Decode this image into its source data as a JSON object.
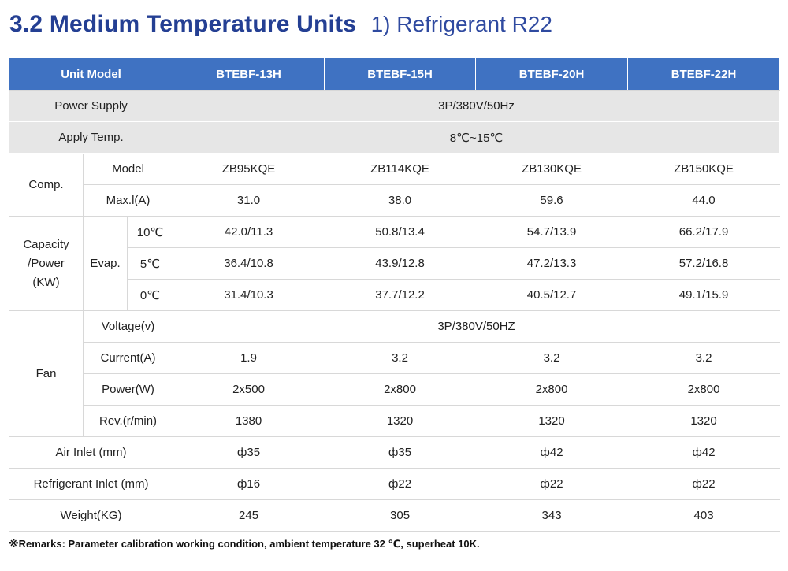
{
  "title": {
    "main": "3.2 Medium Temperature Units",
    "sub": "1) Refrigerant R22"
  },
  "table": {
    "header": {
      "unit_model": "Unit Model",
      "models": [
        "BTEBF-13H",
        "BTEBF-15H",
        "BTEBF-20H",
        "BTEBF-22H"
      ]
    },
    "power_supply": {
      "label": "Power Supply",
      "value": "3P/380V/50Hz"
    },
    "apply_temp": {
      "label": "Apply Temp.",
      "value": "8℃~15℃"
    },
    "comp": {
      "label": "Comp.",
      "model": {
        "label": "Model",
        "values": [
          "ZB95KQE",
          "ZB114KQE",
          "ZB130KQE",
          "ZB150KQE"
        ]
      },
      "max_current": {
        "label": "Max.l(A)",
        "values": [
          "31.0",
          "38.0",
          "59.6",
          "44.0"
        ]
      }
    },
    "capacity": {
      "label_lines": [
        "Capacity",
        "/Power",
        "(KW)"
      ],
      "evap_label": "Evap.",
      "rows": [
        {
          "temp": "10℃",
          "values": [
            "42.0/11.3",
            "50.8/13.4",
            "54.7/13.9",
            "66.2/17.9"
          ]
        },
        {
          "temp": "5℃",
          "values": [
            "36.4/10.8",
            "43.9/12.8",
            "47.2/13.3",
            "57.2/16.8"
          ]
        },
        {
          "temp": "0℃",
          "values": [
            "31.4/10.3",
            "37.7/12.2",
            "40.5/12.7",
            "49.1/15.9"
          ]
        }
      ]
    },
    "fan": {
      "label": "Fan",
      "voltage": {
        "label": "Voltage(v)",
        "value": "3P/380V/50HZ"
      },
      "current": {
        "label": "Current(A)",
        "values": [
          "1.9",
          "3.2",
          "3.2",
          "3.2"
        ]
      },
      "power": {
        "label": "Power(W)",
        "values": [
          "2x500",
          "2x800",
          "2x800",
          "2x800"
        ]
      },
      "rev": {
        "label": "Rev.(r/min)",
        "values": [
          "1380",
          "1320",
          "1320",
          "1320"
        ]
      }
    },
    "air_inlet": {
      "label": "Air Inlet (mm)",
      "values": [
        "ф35",
        "ф35",
        "ф42",
        "ф42"
      ]
    },
    "refrigerant_inlet": {
      "label": "Refrigerant Inlet (mm)",
      "values": [
        "ф16",
        "ф22",
        "ф22",
        "ф22"
      ]
    },
    "weight": {
      "label": "Weight(KG)",
      "values": [
        "245",
        "305",
        "343",
        "403"
      ]
    }
  },
  "remark": "※Remarks: Parameter calibration working condition, ambient temperature 32 ℃, superheat 10K."
}
